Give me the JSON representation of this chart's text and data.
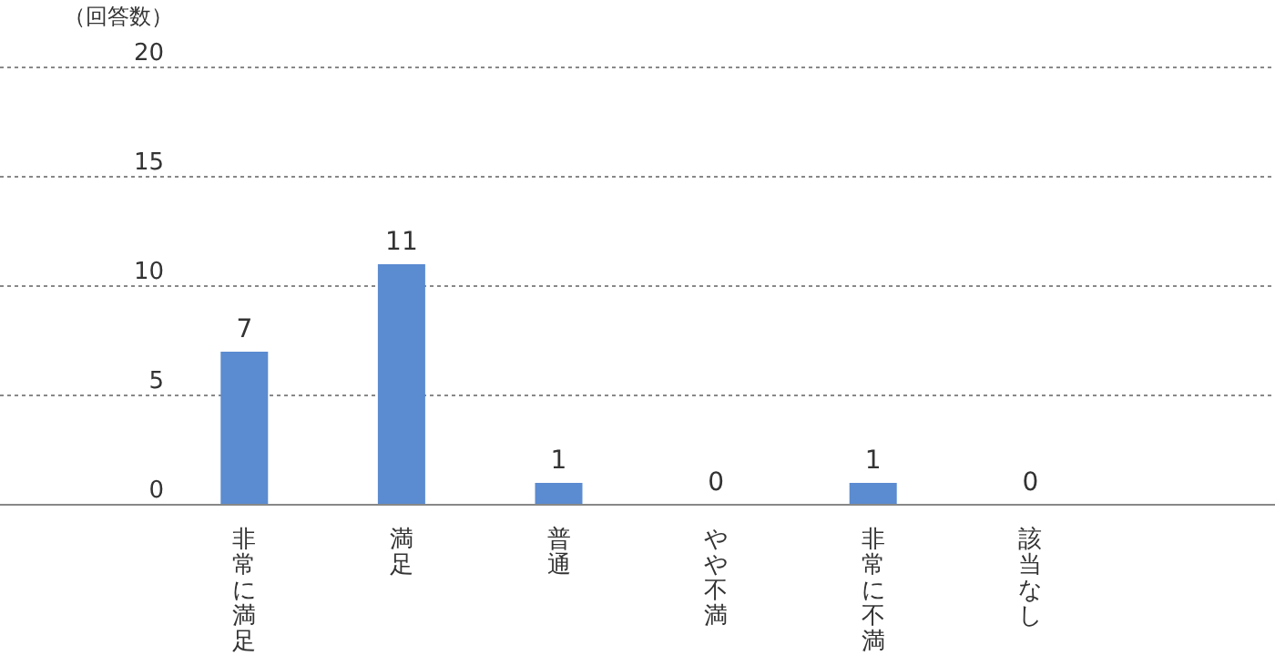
{
  "chart_data": {
    "type": "bar",
    "ylabel": "（回答数）",
    "categories": [
      "非常に満足",
      "満足",
      "普通",
      "やや不満",
      "非常に不満",
      "該当なし"
    ],
    "values": [
      7,
      11,
      1,
      0,
      1,
      0
    ],
    "color": "#5b8bd0",
    "ylim": [
      0,
      20
    ],
    "yticks": [
      0,
      5,
      10,
      15,
      20
    ],
    "grid": "y",
    "data_labels": true
  }
}
